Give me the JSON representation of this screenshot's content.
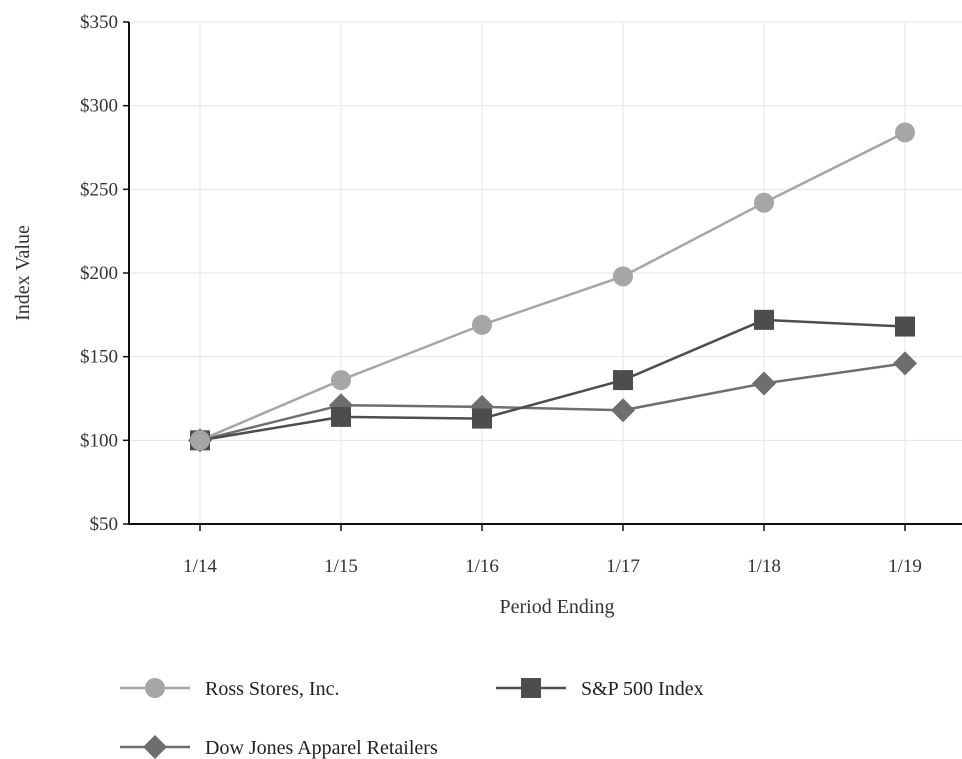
{
  "chart_data": {
    "type": "line",
    "title": "",
    "xlabel": "Period Ending",
    "ylabel": "Index Value",
    "categories": [
      "1/14",
      "1/15",
      "1/16",
      "1/17",
      "1/18",
      "1/19"
    ],
    "ylim": [
      50,
      350
    ],
    "yticks": [
      50,
      100,
      150,
      200,
      250,
      300,
      350
    ],
    "ytick_labels": [
      "$50",
      "$100",
      "$150",
      "$200",
      "$250",
      "$300",
      "$350"
    ],
    "grid": true,
    "legend_position": "bottom",
    "series": [
      {
        "name": "Ross Stores, Inc.",
        "values": [
          100,
          136,
          169,
          198,
          242,
          284
        ],
        "color": "#a6a6a6",
        "marker": "circle"
      },
      {
        "name": "S&P 500 Index",
        "values": [
          100,
          114,
          113,
          136,
          172,
          168
        ],
        "color": "#4d4d4d",
        "marker": "square"
      },
      {
        "name": "Dow Jones Apparel Retailers",
        "values": [
          100,
          121,
          120,
          118,
          134,
          146
        ],
        "color": "#6e6e6e",
        "marker": "diamond"
      }
    ]
  }
}
